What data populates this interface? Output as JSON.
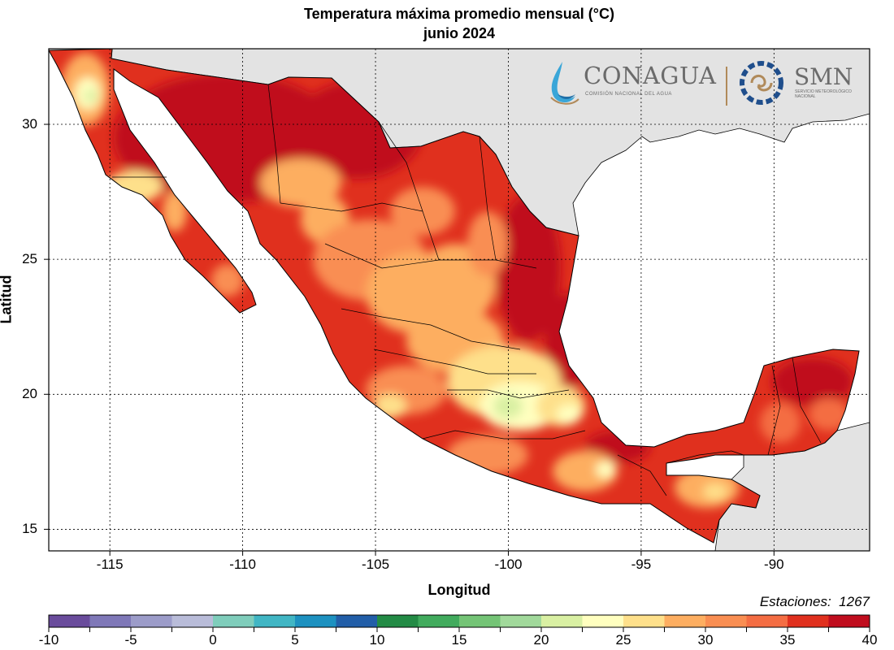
{
  "title": {
    "line1": "Temperatura máxima promedio mensual (°C)",
    "line2": "junio 2024"
  },
  "axes": {
    "xlabel": "Longitud",
    "ylabel": "Latitud",
    "x_ticks": [
      "-115",
      "-110",
      "-105",
      "-100",
      "-95",
      "-90"
    ],
    "y_ticks": [
      "30",
      "25",
      "20",
      "15"
    ],
    "x_range": [
      -117.3,
      -86.4
    ],
    "y_range": [
      14.2,
      32.8
    ],
    "grid": "dotted"
  },
  "stations": {
    "label": "Estaciones:",
    "count": "1267"
  },
  "logos": {
    "conagua": "CONAGUA",
    "conagua_sub": "COMISIÓN NACIONAL DEL AGUA",
    "smn": "SMN",
    "smn_sub": "SERVICIO METEOROLÓGICO NACIONAL"
  },
  "colorbar": {
    "tick_labels": [
      "-10",
      "-5",
      "0",
      "5",
      "10",
      "15",
      "20",
      "25",
      "30",
      "35",
      "40"
    ],
    "bin_colors": [
      "#6a4c9c",
      "#7f78b8",
      "#9c9cc9",
      "#b9bcd9",
      "#7fcdbb",
      "#41b6c4",
      "#1d91c0",
      "#225ea8",
      "#238b45",
      "#41ab5d",
      "#74c476",
      "#a1d99b",
      "#d9f0a3",
      "#ffffbf",
      "#fee08b",
      "#fdae61",
      "#f98e52",
      "#f46d43",
      "#e0301e",
      "#c00d1e"
    ]
  },
  "colors": {
    "land_outside": "#e3e3e3",
    "water": "#ffffff",
    "hot": "#c00d1e",
    "warm": "#e0301e",
    "mid": "#f46d43",
    "orange": "#fdae61",
    "yellow": "#fee08b",
    "pale": "#ffffbf",
    "green": "#d9f0a3"
  }
}
